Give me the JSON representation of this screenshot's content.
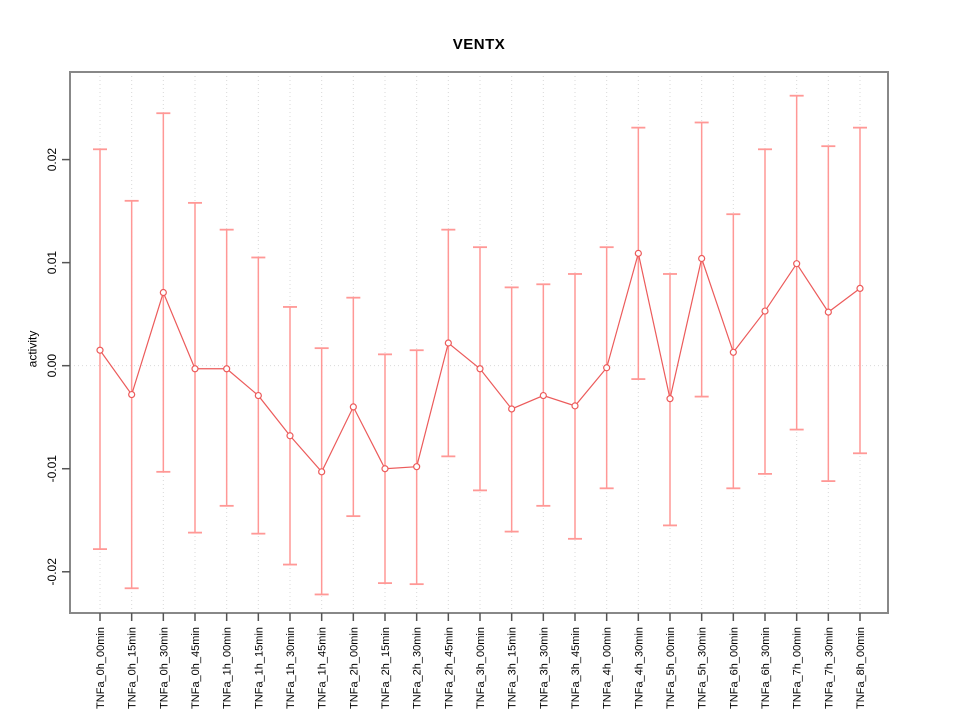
{
  "chart_data": {
    "type": "line",
    "title": "VENTX",
    "xlabel": "",
    "ylabel": "activity",
    "categories": [
      "TNFa_0h_00min",
      "TNFa_0h_15min",
      "TNFa_0h_30min",
      "TNFa_0h_45min",
      "TNFa_1h_00min",
      "TNFa_1h_15min",
      "TNFa_1h_30min",
      "TNFa_1h_45min",
      "TNFa_2h_00min",
      "TNFa_2h_15min",
      "TNFa_2h_30min",
      "TNFa_2h_45min",
      "TNFa_3h_00min",
      "TNFa_3h_15min",
      "TNFa_3h_30min",
      "TNFa_3h_45min",
      "TNFa_4h_00min",
      "TNFa_4h_30min",
      "TNFa_5h_00min",
      "TNFa_5h_30min",
      "TNFa_6h_00min",
      "TNFa_6h_30min",
      "TNFa_7h_00min",
      "TNFa_7h_30min",
      "TNFa_8h_00min"
    ],
    "series": [
      {
        "name": "activity",
        "values": [
          0.0015,
          -0.0028,
          0.0071,
          -0.0003,
          -0.0003,
          -0.0029,
          -0.0068,
          -0.0103,
          -0.004,
          -0.01,
          -0.0098,
          0.0022,
          -0.0003,
          -0.0042,
          -0.0029,
          -0.0039,
          -0.0002,
          0.0109,
          -0.0032,
          0.0104,
          0.0013,
          0.0053,
          0.0099,
          0.0052,
          0.0075
        ],
        "upper": [
          0.021,
          0.016,
          0.0245,
          0.0158,
          0.0132,
          0.0105,
          0.0057,
          0.0017,
          0.0066,
          0.0011,
          0.0015,
          0.0132,
          0.0115,
          0.0076,
          0.0079,
          0.0089,
          0.0115,
          0.0231,
          0.0089,
          0.0236,
          0.0147,
          0.021,
          0.0262,
          0.0213,
          0.0231
        ],
        "lower": [
          -0.0178,
          -0.0216,
          -0.0103,
          -0.0162,
          -0.0136,
          -0.0163,
          -0.0193,
          -0.0222,
          -0.0146,
          -0.0211,
          -0.0212,
          -0.0088,
          -0.0121,
          -0.0161,
          -0.0136,
          -0.0168,
          -0.0119,
          -0.0013,
          -0.0155,
          -0.003,
          -0.0119,
          -0.0105,
          -0.0062,
          -0.0112,
          -0.0085
        ]
      }
    ],
    "yticks": [
      -0.02,
      -0.01,
      0.0,
      0.01,
      0.02
    ],
    "ylim": [
      -0.024,
      0.0285
    ],
    "grid": "vertical dotted line per category, horizontal dotted line at y=0",
    "legend": "none",
    "colors": {
      "errorbar": "#ff9896",
      "line": "#ec5b5b",
      "marker_stroke": "#ec5b5b",
      "marker_fill": "#ffffff",
      "grid": "#d9d9d9",
      "border": "#888888",
      "tick": "#555555",
      "text": "#000000",
      "background": "#ffffff"
    }
  }
}
